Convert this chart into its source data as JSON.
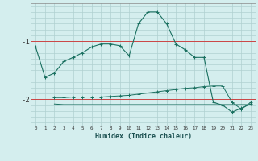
{
  "xlabel": "Humidex (Indice chaleur)",
  "xlim": [
    -0.5,
    23.5
  ],
  "ylim": [
    -2.45,
    -0.35
  ],
  "yticks": [
    -2,
    -1
  ],
  "ytick_labels": [
    "-2",
    "-1"
  ],
  "xticks": [
    0,
    1,
    2,
    3,
    4,
    5,
    6,
    7,
    8,
    9,
    10,
    11,
    12,
    13,
    14,
    15,
    16,
    17,
    18,
    19,
    20,
    21,
    22,
    23
  ],
  "bg_color": "#d4eeee",
  "grid_color_v": "#b0d0d0",
  "grid_color_h": "#b0d0d0",
  "hline_color": "#cc4444",
  "line_color": "#1a7060",
  "series1_x": [
    0,
    1,
    2,
    3,
    4,
    5,
    6,
    7,
    8,
    9,
    10,
    11,
    12,
    13,
    14,
    15,
    16,
    17,
    18,
    19,
    20,
    21,
    22,
    23
  ],
  "series1_y": [
    -1.1,
    -1.62,
    -1.55,
    -1.35,
    -1.28,
    -1.2,
    -1.1,
    -1.05,
    -1.05,
    -1.08,
    -1.25,
    -0.7,
    -0.5,
    -0.5,
    -0.7,
    -1.05,
    -1.15,
    -1.28,
    -1.28,
    -2.05,
    -2.1,
    -2.22,
    -2.15,
    -2.08
  ],
  "series2_x": [
    2,
    3,
    4,
    5,
    6,
    7,
    8,
    9,
    10,
    11,
    12,
    13,
    14,
    15,
    16,
    17,
    18,
    19,
    20,
    21,
    22,
    23
  ],
  "series2_y": [
    -1.97,
    -1.97,
    -1.96,
    -1.96,
    -1.96,
    -1.96,
    -1.95,
    -1.94,
    -1.93,
    -1.91,
    -1.89,
    -1.87,
    -1.85,
    -1.83,
    -1.81,
    -1.8,
    -1.78,
    -1.77,
    -1.77,
    -2.05,
    -2.17,
    -2.05
  ],
  "series3_x": [
    2,
    3,
    4,
    5,
    6,
    7,
    8,
    9,
    10,
    11,
    12,
    13,
    14,
    15,
    16,
    17,
    18,
    19,
    20,
    21,
    22,
    23
  ],
  "series3_y": [
    -2.08,
    -2.09,
    -2.09,
    -2.09,
    -2.09,
    -2.09,
    -2.09,
    -2.09,
    -2.09,
    -2.09,
    -2.09,
    -2.09,
    -2.09,
    -2.09,
    -2.09,
    -2.09,
    -2.09,
    -2.09,
    -2.09,
    -2.09,
    -2.09,
    -2.09
  ]
}
